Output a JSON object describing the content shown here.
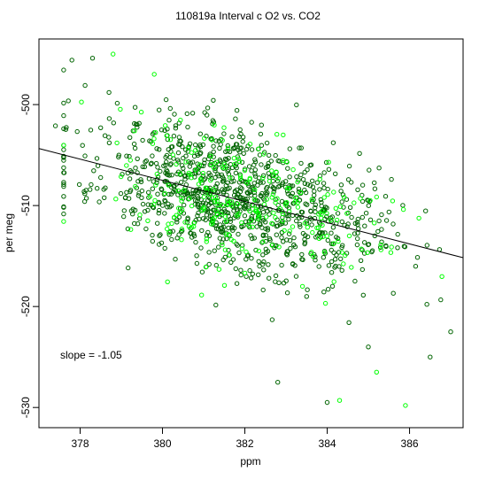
{
  "chart_data": {
    "type": "scatter",
    "title": "110819a   Interval c O2 vs. CO2",
    "xlabel": "ppm",
    "ylabel": "per meg",
    "xlim": [
      377,
      387.3
    ],
    "ylim": [
      -532,
      -493.5
    ],
    "xticks": [
      378,
      380,
      382,
      384,
      386
    ],
    "yticks": [
      -530,
      -520,
      -510,
      -500
    ],
    "annotation": "slope =  -1.05",
    "fit_line": {
      "slope": -1.05,
      "through": [
        382,
        -509.6
      ]
    },
    "grid": false,
    "legend": "none",
    "colors": {
      "dark": "#006400",
      "light": "#00ff00",
      "line": "#000000"
    },
    "series": [
      {
        "color": "dark",
        "count": 1050,
        "sample_points": [
          [
            377.4,
            -502.1
          ],
          [
            377.8,
            -495.6
          ],
          [
            378.3,
            -495.4
          ],
          [
            378.7,
            -498.8
          ],
          [
            379.1,
            -509.2
          ],
          [
            380.5,
            -505.3
          ],
          [
            382.0,
            -510.0
          ],
          [
            383.5,
            -519.0
          ],
          [
            385.0,
            -524.0
          ],
          [
            386.5,
            -525.0
          ],
          [
            387.0,
            -522.5
          ],
          [
            384.0,
            -529.5
          ],
          [
            382.8,
            -527.5
          ]
        ]
      },
      {
        "color": "light",
        "count": 260,
        "sample_points": [
          [
            378.8,
            -495.0
          ],
          [
            379.8,
            -497.0
          ],
          [
            381.2,
            -503.5
          ],
          [
            382.2,
            -510.0
          ],
          [
            383.4,
            -518.0
          ],
          [
            385.2,
            -526.5
          ],
          [
            385.9,
            -529.8
          ],
          [
            384.3,
            -529.3
          ]
        ]
      }
    ]
  }
}
